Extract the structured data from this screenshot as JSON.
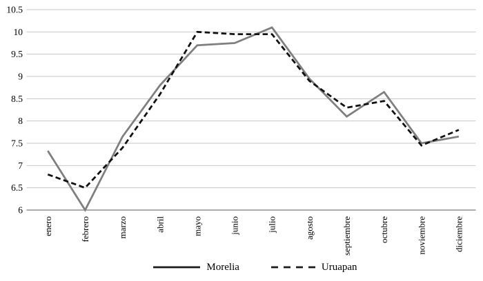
{
  "chart_data": {
    "type": "line",
    "title": "",
    "xlabel": "",
    "ylabel": "",
    "categories": [
      "enero",
      "febrero",
      "marzo",
      "abril",
      "mayo",
      "junio",
      "julio",
      "agosto",
      "septiembre",
      "octubre",
      "noviembre",
      "diciembre"
    ],
    "series": [
      {
        "name": "Morelia",
        "style": "solid",
        "color": "#7f7f7f",
        "values": [
          7.33,
          6.0,
          7.65,
          8.8,
          9.7,
          9.75,
          10.1,
          8.95,
          8.1,
          8.65,
          7.5,
          7.65
        ]
      },
      {
        "name": "Uruapan",
        "style": "dashed",
        "color": "#111111",
        "values": [
          6.8,
          6.5,
          7.4,
          8.6,
          10.0,
          9.95,
          9.95,
          8.9,
          8.3,
          8.45,
          7.45,
          7.8
        ]
      }
    ],
    "ylim": [
      6,
      10.5
    ],
    "ytick_step": 0.5,
    "yticks": [
      "10.5",
      "10",
      "9.5",
      "9",
      "8.5",
      "8",
      "7.5",
      "7",
      "6.5",
      "6"
    ],
    "grid": "horizontal",
    "legend_position": "bottom-center",
    "x_label_rotation_deg": -90,
    "colors": {
      "grid": "#c6c6c6",
      "axis": "#8f8f8f",
      "tick_text": "#000000",
      "legend_swatch": "#1a1a1a"
    }
  }
}
